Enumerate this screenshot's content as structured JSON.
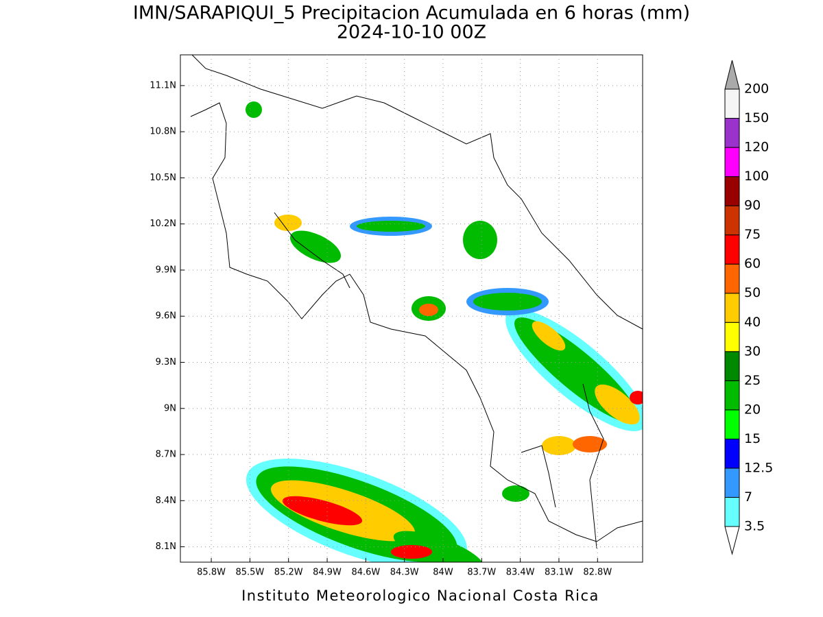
{
  "map": {
    "title": "IMN/SARAPIQUI_5 Precipitacion Acumulada en 6 horas (mm)",
    "subtitle": "2024-10-10 00Z",
    "footer": "Instituto Meteorologico Nacional Costa Rica",
    "xlim": [
      -86.04,
      -82.45
    ],
    "ylim": [
      8.0,
      11.3
    ],
    "xticks": [
      {
        "value": -85.8,
        "label": "85.8W"
      },
      {
        "value": -85.5,
        "label": "85.5W"
      },
      {
        "value": -85.2,
        "label": "85.2W"
      },
      {
        "value": -84.9,
        "label": "84.9W"
      },
      {
        "value": -84.6,
        "label": "84.6W"
      },
      {
        "value": -84.3,
        "label": "84.3W"
      },
      {
        "value": -84.0,
        "label": "84W"
      },
      {
        "value": -83.7,
        "label": "83.7W"
      },
      {
        "value": -83.4,
        "label": "83.4W"
      },
      {
        "value": -83.1,
        "label": "83.1W"
      },
      {
        "value": -82.8,
        "label": "82.8W"
      }
    ],
    "yticks": [
      {
        "value": 8.1,
        "label": "8.1N"
      },
      {
        "value": 8.4,
        "label": "8.4N"
      },
      {
        "value": 8.7,
        "label": "8.7N"
      },
      {
        "value": 9.0,
        "label": "9N"
      },
      {
        "value": 9.3,
        "label": "9.3N"
      },
      {
        "value": 9.6,
        "label": "9.6N"
      },
      {
        "value": 9.9,
        "label": "9.9N"
      },
      {
        "value": 10.2,
        "label": "10.2N"
      },
      {
        "value": 10.5,
        "label": "10.5N"
      },
      {
        "value": 10.8,
        "label": "10.8N"
      },
      {
        "value": 11.1,
        "label": "11.1N"
      }
    ],
    "grid": true,
    "colorbar": {
      "levels": [
        3.5,
        7,
        12.5,
        15,
        20,
        25,
        30,
        40,
        50,
        60,
        75,
        90,
        100,
        120,
        150,
        200
      ],
      "colors": [
        "#ffffff",
        "#66ffff",
        "#3399ff",
        "#0000ff",
        "#00ff00",
        "#00bb00",
        "#008800",
        "#ffff00",
        "#ffcc00",
        "#ff6600",
        "#ff0000",
        "#cc3300",
        "#990000",
        "#ff00ff",
        "#9933cc",
        "#f5f5f5",
        "#aaaaaa"
      ]
    }
  }
}
